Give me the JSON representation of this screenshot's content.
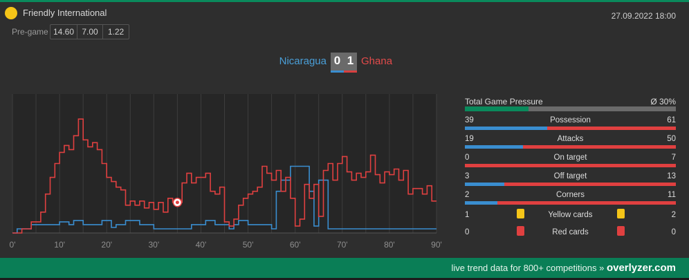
{
  "match": {
    "competition": "Friendly International",
    "datetime": "27.09.2022 18:00",
    "pregame_label": "Pre-game",
    "odds": [
      "14.60",
      "7.00",
      "1.22"
    ],
    "home_team": "Nicaragua",
    "away_team": "Ghana",
    "home_score": "0",
    "away_score": "1"
  },
  "colors": {
    "home": "#3a8ed0",
    "away": "#e04040",
    "brand": "#0a7e56",
    "yellow": "#f5c518"
  },
  "chart_data": {
    "type": "line",
    "x_ticks": [
      "0'",
      "10'",
      "20'",
      "30'",
      "40'",
      "50'",
      "60'",
      "70'",
      "80'",
      "90'"
    ],
    "xlim": [
      0,
      90
    ],
    "ylim": [
      0,
      100
    ],
    "goal_minute": 35,
    "series": [
      {
        "team": "away",
        "points": [
          [
            0,
            0
          ],
          [
            2,
            0
          ],
          [
            2,
            3
          ],
          [
            4,
            3
          ],
          [
            4,
            8
          ],
          [
            6,
            8
          ],
          [
            6,
            15
          ],
          [
            7,
            15
          ],
          [
            7,
            28
          ],
          [
            8,
            28
          ],
          [
            8,
            40
          ],
          [
            9,
            40
          ],
          [
            9,
            50
          ],
          [
            10,
            50
          ],
          [
            10,
            58
          ],
          [
            11,
            58
          ],
          [
            11,
            63
          ],
          [
            12,
            63
          ],
          [
            12,
            60
          ],
          [
            13,
            60
          ],
          [
            13,
            70
          ],
          [
            14,
            70
          ],
          [
            14,
            82
          ],
          [
            15,
            82
          ],
          [
            15,
            67
          ],
          [
            16,
            67
          ],
          [
            16,
            62
          ],
          [
            17,
            62
          ],
          [
            17,
            65
          ],
          [
            18,
            65
          ],
          [
            18,
            60
          ],
          [
            19,
            60
          ],
          [
            19,
            50
          ],
          [
            20,
            50
          ],
          [
            20,
            40
          ],
          [
            21,
            40
          ],
          [
            21,
            37
          ],
          [
            22,
            37
          ],
          [
            22,
            33
          ],
          [
            23,
            33
          ],
          [
            23,
            31
          ],
          [
            24,
            31
          ],
          [
            24,
            20
          ],
          [
            25,
            20
          ],
          [
            25,
            23
          ],
          [
            26,
            23
          ],
          [
            26,
            20
          ],
          [
            27,
            20
          ],
          [
            27,
            23
          ],
          [
            28,
            23
          ],
          [
            28,
            18
          ],
          [
            29,
            18
          ],
          [
            29,
            22
          ],
          [
            30,
            22
          ],
          [
            30,
            17
          ],
          [
            31,
            17
          ],
          [
            31,
            22
          ],
          [
            32,
            22
          ],
          [
            32,
            15
          ],
          [
            33,
            15
          ],
          [
            33,
            25
          ],
          [
            34,
            25
          ],
          [
            34,
            22
          ],
          [
            36,
            22
          ],
          [
            36,
            36
          ],
          [
            37,
            36
          ],
          [
            37,
            43
          ],
          [
            38,
            43
          ],
          [
            38,
            36
          ],
          [
            39,
            36
          ],
          [
            39,
            40
          ],
          [
            41,
            40
          ],
          [
            41,
            43
          ],
          [
            42,
            43
          ],
          [
            42,
            30
          ],
          [
            43,
            30
          ],
          [
            43,
            28
          ],
          [
            44,
            28
          ],
          [
            44,
            33
          ],
          [
            45,
            33
          ],
          [
            45,
            8
          ],
          [
            46,
            8
          ],
          [
            46,
            5
          ],
          [
            47,
            5
          ],
          [
            47,
            10
          ],
          [
            48,
            10
          ],
          [
            48,
            20
          ],
          [
            49,
            20
          ],
          [
            49,
            25
          ],
          [
            50,
            25
          ],
          [
            50,
            28
          ],
          [
            51,
            28
          ],
          [
            51,
            30
          ],
          [
            52,
            30
          ],
          [
            52,
            33
          ],
          [
            53,
            33
          ],
          [
            53,
            48
          ],
          [
            54,
            48
          ],
          [
            54,
            43
          ],
          [
            55,
            43
          ],
          [
            55,
            38
          ],
          [
            56,
            38
          ],
          [
            56,
            45
          ],
          [
            57,
            45
          ],
          [
            57,
            30
          ],
          [
            58,
            30
          ],
          [
            58,
            40
          ],
          [
            59,
            40
          ],
          [
            59,
            25
          ],
          [
            60,
            25
          ],
          [
            60,
            5
          ],
          [
            61,
            5
          ],
          [
            61,
            10
          ],
          [
            62,
            10
          ],
          [
            62,
            35
          ],
          [
            63,
            35
          ],
          [
            63,
            25
          ],
          [
            64,
            25
          ],
          [
            64,
            35
          ],
          [
            65,
            35
          ],
          [
            65,
            12
          ],
          [
            66,
            12
          ],
          [
            66,
            45
          ],
          [
            67,
            45
          ],
          [
            67,
            50
          ],
          [
            68,
            50
          ],
          [
            68,
            38
          ],
          [
            69,
            38
          ],
          [
            69,
            50
          ],
          [
            70,
            50
          ],
          [
            70,
            55
          ],
          [
            71,
            55
          ],
          [
            71,
            44
          ],
          [
            72,
            44
          ],
          [
            72,
            38
          ],
          [
            73,
            38
          ],
          [
            73,
            43
          ],
          [
            74,
            43
          ],
          [
            74,
            40
          ],
          [
            75,
            40
          ],
          [
            75,
            44
          ],
          [
            76,
            44
          ],
          [
            76,
            56
          ],
          [
            77,
            56
          ],
          [
            77,
            42
          ],
          [
            78,
            42
          ],
          [
            78,
            36
          ],
          [
            79,
            36
          ],
          [
            79,
            44
          ],
          [
            80,
            44
          ],
          [
            80,
            42
          ],
          [
            81,
            42
          ],
          [
            81,
            46
          ],
          [
            82,
            46
          ],
          [
            82,
            38
          ],
          [
            83,
            38
          ],
          [
            83,
            45
          ],
          [
            84,
            45
          ],
          [
            84,
            28
          ],
          [
            85,
            28
          ],
          [
            85,
            32
          ],
          [
            87,
            32
          ],
          [
            87,
            28
          ],
          [
            88,
            28
          ],
          [
            88,
            34
          ],
          [
            89,
            34
          ],
          [
            89,
            23
          ],
          [
            90,
            23
          ]
        ]
      },
      {
        "team": "home",
        "points": [
          [
            0,
            0
          ],
          [
            1,
            0
          ],
          [
            1,
            3
          ],
          [
            4,
            3
          ],
          [
            4,
            6
          ],
          [
            10,
            6
          ],
          [
            10,
            8
          ],
          [
            12,
            8
          ],
          [
            12,
            6
          ],
          [
            13,
            6
          ],
          [
            13,
            9
          ],
          [
            15,
            9
          ],
          [
            15,
            6
          ],
          [
            19,
            6
          ],
          [
            19,
            9
          ],
          [
            21,
            9
          ],
          [
            21,
            4
          ],
          [
            22,
            4
          ],
          [
            22,
            6
          ],
          [
            24,
            6
          ],
          [
            24,
            9
          ],
          [
            27,
            9
          ],
          [
            27,
            6
          ],
          [
            30,
            6
          ],
          [
            30,
            3
          ],
          [
            38,
            3
          ],
          [
            38,
            6
          ],
          [
            41,
            6
          ],
          [
            41,
            9
          ],
          [
            43,
            9
          ],
          [
            43,
            6
          ],
          [
            46,
            6
          ],
          [
            46,
            3
          ],
          [
            47,
            3
          ],
          [
            47,
            6
          ],
          [
            48,
            6
          ],
          [
            48,
            9
          ],
          [
            50,
            9
          ],
          [
            50,
            6
          ],
          [
            55,
            6
          ],
          [
            55,
            3
          ],
          [
            56,
            3
          ],
          [
            56,
            30
          ],
          [
            57,
            30
          ],
          [
            57,
            38
          ],
          [
            59,
            38
          ],
          [
            59,
            48
          ],
          [
            63,
            48
          ],
          [
            63,
            30
          ],
          [
            64,
            30
          ],
          [
            64,
            5
          ],
          [
            65,
            5
          ],
          [
            65,
            38
          ],
          [
            67,
            38
          ],
          [
            67,
            3
          ],
          [
            78,
            3
          ],
          [
            86,
            3
          ],
          [
            90,
            3
          ]
        ]
      }
    ]
  },
  "stats": {
    "pressure": {
      "label": "Total Game Pressure",
      "value": "Ø 30%",
      "fraction": 0.3
    },
    "rows": [
      {
        "label": "Possession",
        "home": "39",
        "away": "61"
      },
      {
        "label": "Attacks",
        "home": "19",
        "away": "50"
      },
      {
        "label": "On target",
        "home": "0",
        "away": "7"
      },
      {
        "label": "Off target",
        "home": "3",
        "away": "13"
      },
      {
        "label": "Corners",
        "home": "2",
        "away": "11"
      }
    ],
    "yellow": {
      "label": "Yellow cards",
      "home": "1",
      "away": "2"
    },
    "red": {
      "label": "Red cards",
      "home": "0",
      "away": "0"
    }
  },
  "footer": {
    "text": "live trend data for 800+ competitions »",
    "brand": "overlyzer.com"
  }
}
